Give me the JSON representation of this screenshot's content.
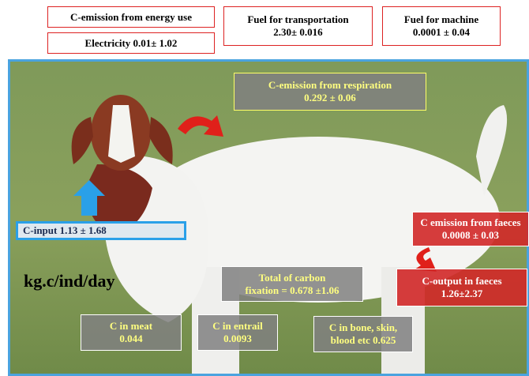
{
  "header": {
    "energy": "C-emission from energy use",
    "electricity": "Electricity 0.01± 1.02",
    "transport": [
      "Fuel for transportation",
      "2.30± 0.016"
    ],
    "machine": [
      "Fuel for machine",
      "0.0001 ± 0.04"
    ]
  },
  "diagram": {
    "respiration": [
      "C-emission from respiration",
      "0.292 ± 0.06"
    ],
    "input": "C-input 1.13 ± 1.68",
    "unit": "kg.c/ind/day",
    "faeces_emission": [
      "C emission from faeces",
      "0.0008 ± 0.03"
    ],
    "faeces_output": [
      "C-output in faeces",
      "1.26±2.37"
    ],
    "fixation": [
      "Total of carbon",
      "fixation = 0.678 ±1.06"
    ],
    "meat": [
      "C in meat",
      "0.044"
    ],
    "entrail": [
      "C in entrail",
      "0.0093"
    ],
    "bone": [
      "C in bone, skin,",
      "blood etc 0.625"
    ]
  }
}
